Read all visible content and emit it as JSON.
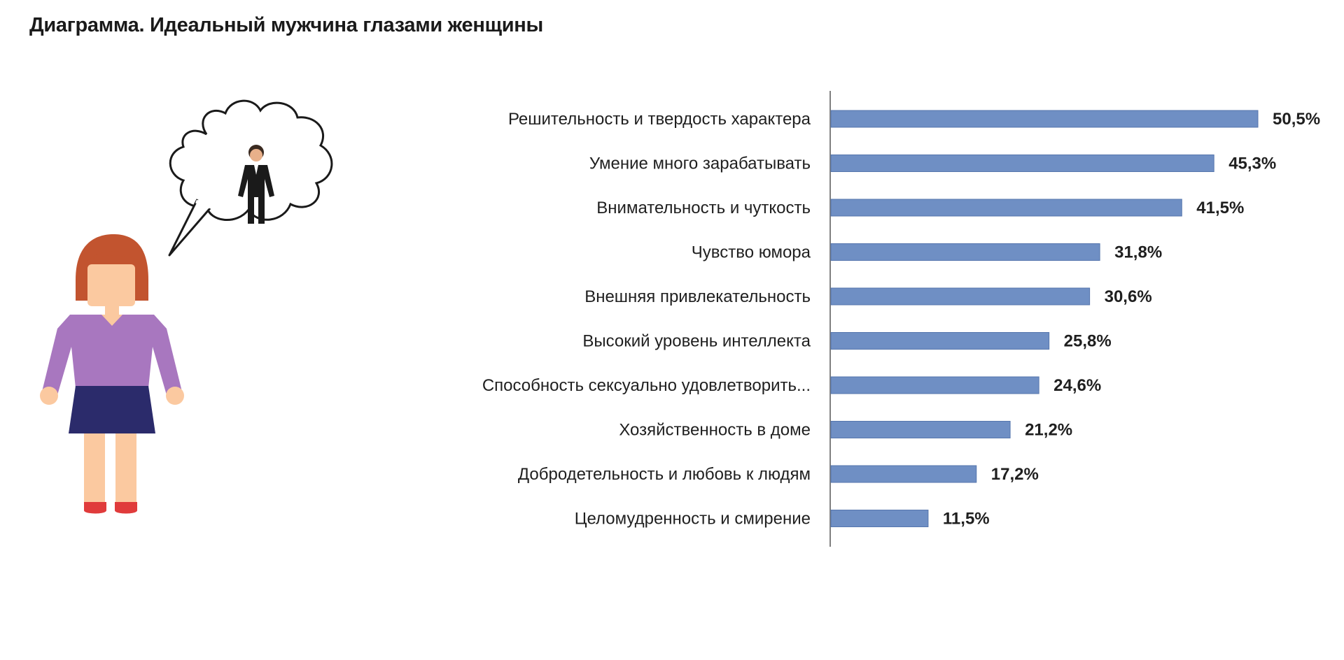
{
  "title": "Диаграмма. Идеальный мужчина глазами женщины",
  "colors": {
    "bar": "#6f8fc4",
    "bar_stroke": "#5676ad",
    "axis": "#7f7f7f",
    "woman_hair": "#c2542f",
    "woman_skin": "#fbc9a0",
    "woman_top": "#a877bf",
    "woman_skirt": "#2b2b6b",
    "woman_shoes": "#e03b3b",
    "man_suit": "#1a1a1a"
  },
  "illustration": {
    "woman_icon": "woman-figure-icon",
    "thought_icon": "thought-bubble-icon",
    "man_icon": "man-figure-icon"
  },
  "chart_data": {
    "type": "bar",
    "orientation": "horizontal",
    "title": "Диаграмма. Идеальный мужчина глазами женщины",
    "xlabel": "",
    "ylabel": "",
    "xlim": [
      0,
      50.5
    ],
    "grid": false,
    "legend": "none",
    "categories": [
      "Решительность и твердость характера",
      "Умение много зарабатывать",
      "Внимательность и чуткость",
      "Чувство юмора",
      "Внешняя привлекательность",
      "Высокий уровень интеллекта",
      "Способность сексуально удовлетворить...",
      "Хозяйственность в доме",
      "Добродетельность и любовь к людям",
      "Целомудренность и смирение"
    ],
    "values": [
      50.5,
      45.3,
      41.5,
      31.8,
      30.6,
      25.8,
      24.6,
      21.2,
      17.2,
      11.5
    ],
    "value_labels": [
      "50,5%",
      "45,3%",
      "41,5%",
      "31,8%",
      "30,6%",
      "25,8%",
      "24,6%",
      "21,2%",
      "17,2%",
      "11,5%"
    ]
  }
}
